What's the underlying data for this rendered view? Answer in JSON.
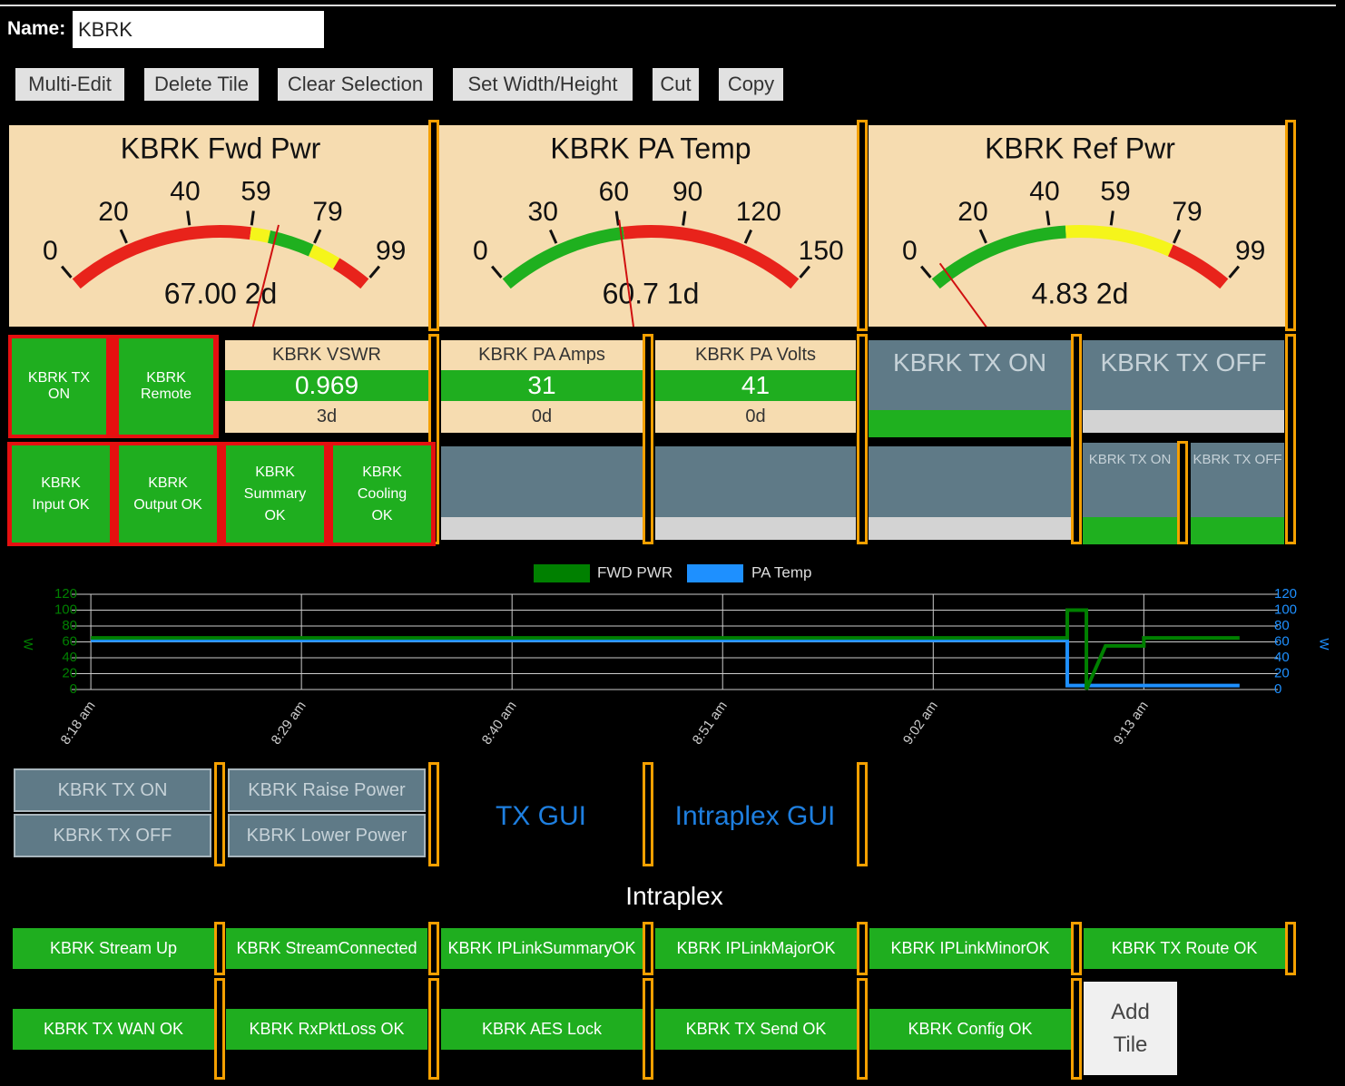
{
  "header": {
    "name_label": "Name:",
    "name_value": "KBRK"
  },
  "toolbar": [
    "Multi-Edit",
    "Delete Tile",
    "Clear Selection",
    "Set Width/Height",
    "Cut",
    "Copy"
  ],
  "gauges": [
    {
      "title": "KBRK Fwd Pwr",
      "range": [
        0,
        99
      ],
      "ticks": [
        0,
        20,
        40,
        59,
        79,
        99
      ],
      "zones": [
        {
          "from": 0,
          "to": 59,
          "color": "#e8231b"
        },
        {
          "from": 59,
          "to": 65,
          "color": "#f5f51b"
        },
        {
          "from": 65,
          "to": 79,
          "color": "#1fb01f"
        },
        {
          "from": 79,
          "to": 88,
          "color": "#f5f51b"
        },
        {
          "from": 88,
          "to": 99,
          "color": "#e8231b"
        }
      ],
      "value": 67,
      "readout": "67.00 2d"
    },
    {
      "title": "KBRK PA Temp",
      "range": [
        0,
        150
      ],
      "ticks": [
        0,
        30,
        60,
        90,
        120,
        150
      ],
      "zones": [
        {
          "from": 0,
          "to": 62,
          "color": "#1fb01f"
        },
        {
          "from": 62,
          "to": 150,
          "color": "#e8231b"
        }
      ],
      "value": 60.7,
      "readout": "60.7 1d"
    },
    {
      "title": "KBRK Ref Pwr",
      "range": [
        0,
        99
      ],
      "ticks": [
        0,
        20,
        40,
        59,
        79,
        99
      ],
      "zones": [
        {
          "from": 0,
          "to": 45,
          "color": "#1fb01f"
        },
        {
          "from": 45,
          "to": 79,
          "color": "#f5f51b"
        },
        {
          "from": 79,
          "to": 99,
          "color": "#e8231b"
        }
      ],
      "value": 4.83,
      "readout": "4.83 2d"
    }
  ],
  "status_tiles_top": [
    "KBRK TX ON",
    "KBRK Remote"
  ],
  "status_tiles_bottom": [
    "KBRK Input OK",
    "KBRK Output OK",
    "KBRK Summary OK",
    "KBRK Cooling OK"
  ],
  "value_tiles": [
    {
      "title": "KBRK VSWR",
      "value": "0.969",
      "age": "3d"
    },
    {
      "title": "KBRK PA Amps",
      "value": "31",
      "age": "0d"
    },
    {
      "title": "KBRK PA Volts",
      "value": "41",
      "age": "0d"
    }
  ],
  "button_tiles": [
    {
      "label": "KBRK TX ON",
      "state": "#1fb01f"
    },
    {
      "label": "KBRK TX OFF",
      "state": "#d3d3d3"
    }
  ],
  "blank_tiles": [
    "#d3d3d3",
    "#d3d3d3",
    "#d3d3d3"
  ],
  "small_button_tiles": [
    {
      "label": "KBRK TX ON",
      "state": "#1fb01f"
    },
    {
      "label": "KBRK TX OFF",
      "state": "#1fb01f"
    }
  ],
  "chart_data": {
    "type": "line",
    "legend": "top",
    "series": [
      {
        "name": "FWD PWR",
        "color": "#008000",
        "x": [
          "8:18 am",
          "9:09 am",
          "9:09 am",
          "9:10 am",
          "9:10 am",
          "9:11 am",
          "9:13 am",
          "9:13 am",
          "9:18 am"
        ],
        "values": [
          65,
          65,
          100,
          100,
          0,
          55,
          55,
          65,
          65
        ]
      },
      {
        "name": "PA Temp",
        "color": "#1e90ff",
        "axis": "y2",
        "x": [
          "8:18 am",
          "9:09 am",
          "9:09 am",
          "9:18 am"
        ],
        "values": [
          62,
          62,
          5,
          5
        ]
      }
    ],
    "ylabel": "W",
    "y2label": "W",
    "xlim": [
      "8:17 am",
      "9:20 am"
    ],
    "xticks": [
      "8:18 am",
      "8:29 am",
      "8:40 am",
      "8:51 am",
      "9:02 am",
      "9:13 am"
    ],
    "ylim": [
      0,
      120
    ],
    "yticks": [
      0,
      20,
      40,
      60,
      80,
      100,
      120
    ],
    "y2lim": [
      0,
      120
    ],
    "y2ticks": [
      0,
      20,
      40,
      60,
      80,
      100,
      120
    ],
    "grid": true
  },
  "controls": [
    [
      "KBRK TX ON",
      "KBRK TX OFF"
    ],
    [
      "KBRK Raise Power",
      "KBRK Lower Power"
    ]
  ],
  "links": [
    "TX GUI",
    "Intraplex GUI"
  ],
  "section_title": "Intraplex",
  "intraplex_tiles": [
    [
      "KBRK Stream Up",
      "KBRK StreamConnected",
      "KBRK IPLinkSummaryOK",
      "KBRK IPLinkMajorOK",
      "KBRK IPLinkMinorOK",
      "KBRK TX Route OK"
    ],
    [
      "KBRK TX WAN OK",
      "KBRK RxPktLoss OK",
      "KBRK AES Lock",
      "KBRK TX Send OK",
      "KBRK Config OK"
    ]
  ],
  "add_tile": "Add Tile"
}
